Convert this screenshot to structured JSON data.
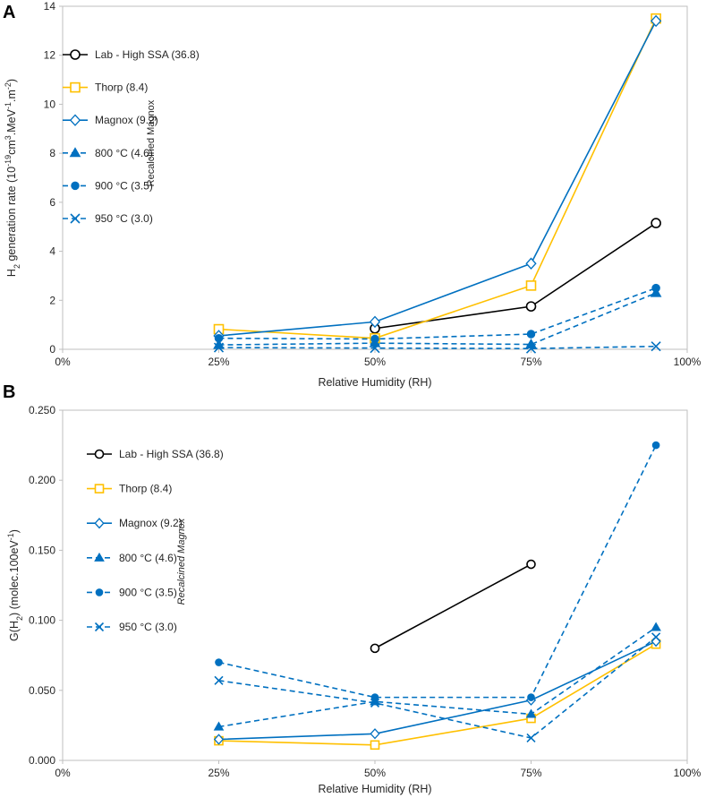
{
  "chart_data": [
    {
      "panel": "A",
      "type": "line",
      "x": [
        25,
        50,
        75,
        95
      ],
      "x_tick_labels": [
        "0%",
        "25%",
        "50%",
        "75%",
        "100%"
      ],
      "xlim": [
        0,
        100
      ],
      "ylim": [
        0,
        14
      ],
      "y_tick_labels": [
        "0",
        "2",
        "4",
        "6",
        "8",
        "10",
        "12",
        "14"
      ],
      "xlabel": "Relative Humidity (RH)",
      "ylabel": {
        "prefix": "H",
        "sub": "2",
        "mid": " generation rate (10",
        "sup1": "-19",
        "mid2": "cm",
        "sup2": "3",
        "mid3": ".MeV",
        "sup3": "-1",
        "mid4": ".m",
        "sup4": "-2",
        "suffix": ")"
      },
      "group_label": "Recalcined Magnox",
      "series": [
        {
          "name": "Lab - High SSA (36.8)",
          "color": "#000000",
          "dashed": false,
          "marker": "circle-open",
          "values": [
            null,
            0.85,
            1.75,
            5.15
          ]
        },
        {
          "name": "Thorp (8.4)",
          "color": "#FFC000",
          "dashed": false,
          "marker": "square-open",
          "values": [
            0.82,
            0.45,
            2.6,
            13.5
          ]
        },
        {
          "name": "Magnox (9.2)",
          "color": "#0070C0",
          "dashed": false,
          "marker": "diamond-open",
          "values": [
            0.55,
            1.12,
            3.5,
            13.4
          ]
        },
        {
          "name": "800 °C (4.6)",
          "color": "#0070C0",
          "dashed": true,
          "marker": "triangle",
          "values": [
            0.18,
            0.25,
            0.2,
            2.3
          ]
        },
        {
          "name": "900 °C (3.5)",
          "color": "#0070C0",
          "dashed": true,
          "marker": "circle",
          "values": [
            0.45,
            0.42,
            0.62,
            2.5
          ]
        },
        {
          "name": "950 °C (3.0)",
          "color": "#0070C0",
          "dashed": true,
          "marker": "x",
          "values": [
            0.07,
            0.05,
            0.03,
            0.12
          ]
        }
      ]
    },
    {
      "panel": "B",
      "type": "line",
      "x": [
        25,
        50,
        75,
        95
      ],
      "x_tick_labels": [
        "0%",
        "25%",
        "50%",
        "75%",
        "100%"
      ],
      "xlim": [
        0,
        100
      ],
      "ylim": [
        0,
        0.25
      ],
      "y_tick_labels": [
        "0.000",
        "0.050",
        "0.100",
        "0.150",
        "0.200",
        "0.250"
      ],
      "xlabel": "Relative Humidity (RH)",
      "ylabel": {
        "prefix": "G(H",
        "sub": "2",
        "mid": ") (molec.100eV",
        "sup1": "-1",
        "suffix": ")"
      },
      "group_label": "Recalcined Magnox",
      "series": [
        {
          "name": "Lab - High SSA (36.8)",
          "color": "#000000",
          "dashed": false,
          "marker": "circle-open",
          "values": [
            null,
            0.08,
            0.14,
            null
          ]
        },
        {
          "name": "Thorp (8.4)",
          "color": "#FFC000",
          "dashed": false,
          "marker": "square-open",
          "values": [
            0.014,
            0.011,
            0.03,
            0.083
          ]
        },
        {
          "name": "Magnox (9.2)",
          "color": "#0070C0",
          "dashed": false,
          "marker": "diamond-open",
          "values": [
            0.015,
            0.019,
            0.043,
            0.085
          ]
        },
        {
          "name": "800 °C (4.6)",
          "color": "#0070C0",
          "dashed": true,
          "marker": "triangle",
          "values": [
            0.024,
            0.042,
            0.033,
            0.095
          ]
        },
        {
          "name": "900 °C (3.5)",
          "color": "#0070C0",
          "dashed": true,
          "marker": "circle",
          "values": [
            0.07,
            0.045,
            0.045,
            0.225
          ]
        },
        {
          "name": "950 °C (3.0)",
          "color": "#0070C0",
          "dashed": true,
          "marker": "x",
          "values": [
            0.057,
            0.041,
            0.016,
            0.088
          ]
        }
      ]
    }
  ]
}
